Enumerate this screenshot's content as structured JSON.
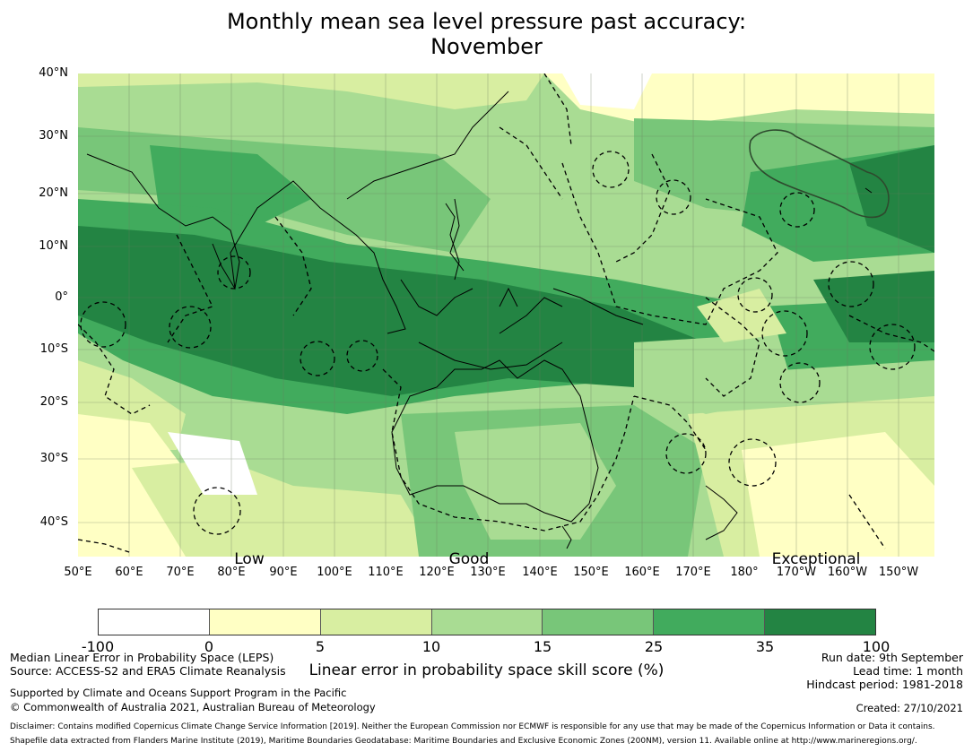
{
  "title": {
    "line1": "Monthly mean sea level pressure past accuracy:",
    "line2": "November"
  },
  "map": {
    "lat_labels": [
      "40°N",
      "30°N",
      "20°N",
      "10°N",
      "0°",
      "10°S",
      "20°S",
      "30°S",
      "40°S"
    ],
    "lon_labels": [
      "50°E",
      "60°E",
      "70°E",
      "80°E",
      "90°E",
      "100°E",
      "110°E",
      "120°E",
      "130°E",
      "140°E",
      "150°E",
      "160°E",
      "170°E",
      "180°",
      "170°W",
      "160°W",
      "150°W"
    ],
    "skill_labels": [
      "Low",
      "Good",
      "Exceptional"
    ]
  },
  "colorbar": {
    "ticks": [
      "-100",
      "0",
      "5",
      "10",
      "15",
      "25",
      "35",
      "100"
    ],
    "colors": [
      "#ffffff",
      "#ffffc4",
      "#d8eea1",
      "#a9dc93",
      "#78c679",
      "#41ab5d",
      "#238443"
    ],
    "label": "Linear error in probability space skill score (%)"
  },
  "footer": {
    "left1": "Median Linear Error in Probability Space (LEPS)",
    "left2": "Source: ACCESS-S2 and ERA5 Climate Reanalysis",
    "left3": "Supported by Climate and Oceans Support Program in the Pacific",
    "left4": "© Commonwealth of Australia 2021, Australian Bureau of Meteorology",
    "right1": "Run date: 9th September",
    "right2": "Lead time: 1 month",
    "right3": "Hindcast period: 1981-2018",
    "right4": "Created: 27/10/2021",
    "disclaimer1": "Disclaimer: Contains modified Copernicus Climate Change Service Information [2019]. Neither the European Commission nor ECMWF is responsible for any use that may be made of the Copernicus Information or Data it contains.",
    "disclaimer2": "Shapefile data extracted from Flanders Marine Institute (2019), Maritime Boundaries Geodatabase: Maritime Boundaries and Exclusive Economic Zones (200NM), version 11. Available online at http://www.marineregions.org/."
  }
}
